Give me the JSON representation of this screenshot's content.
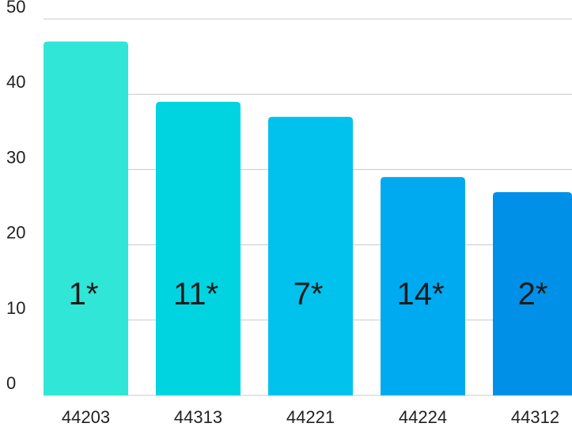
{
  "chart_data": {
    "type": "bar",
    "categories": [
      "44203",
      "44313",
      "44221",
      "44224",
      "44312"
    ],
    "values": [
      47,
      39,
      37,
      29,
      27
    ],
    "bar_labels": [
      "1*",
      "11*",
      "7*",
      "14*",
      "2*"
    ],
    "bar_colors": [
      "#30e6d6",
      "#00d4e0",
      "#00c2ec",
      "#00aaf0",
      "#0090e8"
    ],
    "title": "",
    "xlabel": "",
    "ylabel": "",
    "ylim": [
      0,
      50
    ],
    "yticks": [
      "0",
      "10",
      "20",
      "30",
      "40",
      "50"
    ],
    "grid": true
  }
}
